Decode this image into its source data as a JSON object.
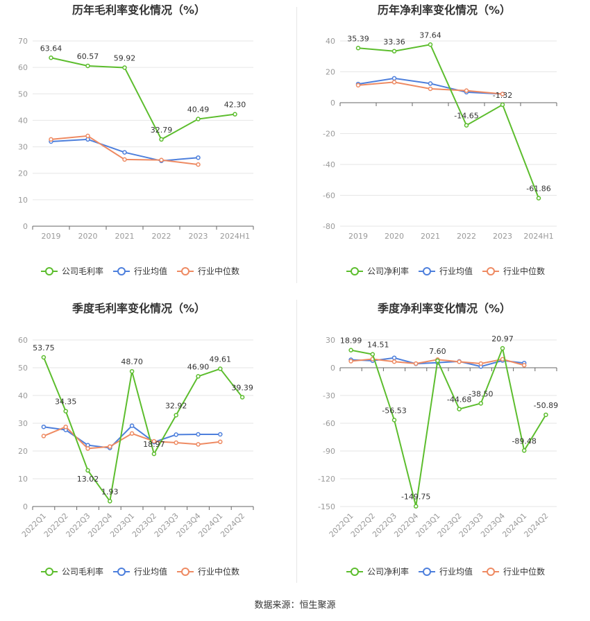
{
  "colors": {
    "company": "#5cbd2d",
    "avg": "#4d7fdc",
    "median": "#ee8a62",
    "axis": "#999999",
    "grid": "#e6e6e6",
    "title": "#333333",
    "label": "#333333",
    "tick": "#999999"
  },
  "source": "数据来源：恒生聚源",
  "chart_data": [
    {
      "type": "line",
      "title": "历年毛利率变化情况（%）",
      "categories": [
        "2019",
        "2020",
        "2021",
        "2022",
        "2023",
        "2024H1"
      ],
      "ylim": [
        0,
        70
      ],
      "yticks": [
        0,
        10,
        20,
        30,
        40,
        50,
        60,
        70
      ],
      "series": [
        {
          "name": "公司毛利率",
          "key": "company",
          "values": [
            63.64,
            60.57,
            59.92,
            32.79,
            40.49,
            42.3
          ],
          "labels": [
            "63.64",
            "60.57",
            "59.92",
            "32.79",
            "40.49",
            "42.30"
          ]
        },
        {
          "name": "行业均值",
          "key": "avg",
          "values": [
            32.0,
            32.8,
            27.9,
            24.7,
            25.9,
            null
          ]
        },
        {
          "name": "行业中位数",
          "key": "median",
          "values": [
            32.8,
            34.1,
            25.2,
            25.0,
            23.3,
            null
          ]
        }
      ]
    },
    {
      "type": "line",
      "title": "历年净利率变化情况（%）",
      "categories": [
        "2019",
        "2020",
        "2021",
        "2022",
        "2023",
        "2024H1"
      ],
      "ylim": [
        -80,
        40
      ],
      "yticks": [
        -80,
        -60,
        -40,
        -20,
        0,
        20,
        40
      ],
      "series": [
        {
          "name": "公司净利率",
          "key": "company",
          "values": [
            35.39,
            33.36,
            37.64,
            -14.65,
            -1.32,
            -61.86
          ],
          "labels": [
            "35.39",
            "33.36",
            "37.64",
            "-14.65",
            "-1.32",
            "-61.86"
          ]
        },
        {
          "name": "行业均值",
          "key": "avg",
          "values": [
            12.1,
            15.8,
            12.4,
            6.8,
            5.6,
            null
          ]
        },
        {
          "name": "行业中位数",
          "key": "median",
          "values": [
            11.3,
            13.3,
            9.0,
            7.8,
            5.6,
            null
          ]
        }
      ]
    },
    {
      "type": "line",
      "title": "季度毛利率变化情况（%）",
      "categories": [
        "2022Q1",
        "2022Q2",
        "2022Q3",
        "2022Q4",
        "2023Q1",
        "2023Q2",
        "2023Q3",
        "2023Q4",
        "2024Q1",
        "2024Q2"
      ],
      "ylim": [
        0,
        60
      ],
      "yticks": [
        0,
        10,
        20,
        30,
        40,
        50,
        60
      ],
      "series": [
        {
          "name": "公司毛利率",
          "key": "company",
          "values": [
            53.75,
            34.35,
            13.02,
            1.93,
            48.7,
            18.97,
            32.92,
            46.9,
            49.61,
            39.39
          ],
          "labels": [
            "53.75",
            "34.35",
            "13.02",
            "1.93",
            "48.70",
            "18.97",
            "32.92",
            "46.90",
            "49.61",
            "39.39"
          ]
        },
        {
          "name": "行业均值",
          "key": "avg",
          "values": [
            28.7,
            27.6,
            22.1,
            21.1,
            29.1,
            23.2,
            25.9,
            26.0,
            26.0,
            null
          ]
        },
        {
          "name": "行业中位数",
          "key": "median",
          "values": [
            25.4,
            28.7,
            20.9,
            21.6,
            26.3,
            23.5,
            23.0,
            22.4,
            23.3,
            null
          ]
        }
      ]
    },
    {
      "type": "line",
      "title": "季度净利率变化情况（%）",
      "categories": [
        "2022Q1",
        "2022Q2",
        "2022Q3",
        "2022Q4",
        "2023Q1",
        "2023Q2",
        "2023Q3",
        "2023Q4",
        "2024Q1",
        "2024Q2"
      ],
      "ylim": [
        -150,
        30
      ],
      "yticks": [
        -150,
        -120,
        -90,
        -60,
        -30,
        0,
        30
      ],
      "series": [
        {
          "name": "公司净利率",
          "key": "company",
          "values": [
            18.99,
            14.51,
            -56.53,
            -149.75,
            7.6,
            -44.68,
            -38.5,
            20.97,
            -89.48,
            -50.89
          ],
          "labels": [
            "18.99",
            "14.51",
            "-56.53",
            "-149.75",
            "7.60",
            "-44.68",
            "-38.50",
            "20.97",
            "-89.48",
            "-50.89"
          ]
        },
        {
          "name": "行业均值",
          "key": "avg",
          "values": [
            8.6,
            7.6,
            10.7,
            4.3,
            5.5,
            6.8,
            1.3,
            7.8,
            5.1,
            null
          ]
        },
        {
          "name": "行业中位数",
          "key": "median",
          "values": [
            7.1,
            9.4,
            6.6,
            4.5,
            8.8,
            6.5,
            4.5,
            9.2,
            2.7,
            null
          ]
        }
      ]
    }
  ]
}
